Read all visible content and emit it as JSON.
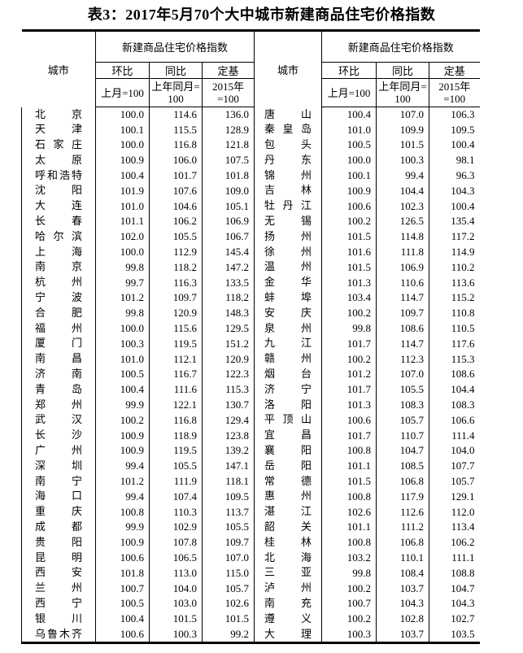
{
  "title": "表3：2017年5月70个大中城市新建商品住宅价格指数",
  "header": {
    "city": "城市",
    "index_group": "新建商品住宅价格指数",
    "mom": "环比",
    "yoy": "同比",
    "fixed_base": "定基",
    "mom_base": "上月=100",
    "yoy_base": "上年同月=\n100",
    "fixed_base_base": "2015年\n=100"
  },
  "table": {
    "columns_per_half": [
      "城市",
      "环比 上月=100",
      "同比 上年同月=100",
      "定基 2015年=100"
    ],
    "rows": [
      [
        "北京",
        "100.0",
        "114.6",
        "136.0",
        "唐山",
        "100.4",
        "107.0",
        "106.3"
      ],
      [
        "天津",
        "100.1",
        "115.5",
        "128.9",
        "秦皇岛",
        "101.0",
        "109.9",
        "109.5"
      ],
      [
        "石家庄",
        "100.0",
        "116.8",
        "121.8",
        "包头",
        "100.5",
        "101.5",
        "100.4"
      ],
      [
        "太原",
        "100.9",
        "106.0",
        "107.5",
        "丹东",
        "100.0",
        "100.3",
        "98.1"
      ],
      [
        "呼和浩特",
        "100.4",
        "101.7",
        "101.8",
        "锦州",
        "100.1",
        "99.4",
        "96.3"
      ],
      [
        "沈阳",
        "101.9",
        "107.6",
        "109.0",
        "吉林",
        "100.9",
        "104.4",
        "104.3"
      ],
      [
        "大连",
        "101.0",
        "104.6",
        "105.1",
        "牡丹江",
        "100.6",
        "102.3",
        "100.4"
      ],
      [
        "长春",
        "101.1",
        "106.2",
        "106.9",
        "无锡",
        "100.2",
        "126.5",
        "135.4"
      ],
      [
        "哈尔滨",
        "102.0",
        "105.5",
        "106.7",
        "扬州",
        "101.5",
        "114.8",
        "117.2"
      ],
      [
        "上海",
        "100.0",
        "112.9",
        "145.4",
        "徐州",
        "101.6",
        "111.8",
        "114.9"
      ],
      [
        "南京",
        "99.8",
        "118.2",
        "147.2",
        "温州",
        "101.5",
        "106.9",
        "110.2"
      ],
      [
        "杭州",
        "99.7",
        "116.3",
        "133.5",
        "金华",
        "101.3",
        "110.6",
        "113.6"
      ],
      [
        "宁波",
        "101.2",
        "109.7",
        "118.2",
        "蚌埠",
        "103.4",
        "114.7",
        "115.2"
      ],
      [
        "合肥",
        "99.8",
        "120.9",
        "148.3",
        "安庆",
        "100.2",
        "109.7",
        "110.8"
      ],
      [
        "福州",
        "100.0",
        "115.6",
        "129.5",
        "泉州",
        "99.8",
        "108.6",
        "110.5"
      ],
      [
        "厦门",
        "100.3",
        "119.5",
        "151.2",
        "九江",
        "101.7",
        "114.7",
        "117.6"
      ],
      [
        "南昌",
        "101.0",
        "112.1",
        "120.9",
        "赣州",
        "100.2",
        "112.3",
        "115.3"
      ],
      [
        "济南",
        "100.5",
        "116.7",
        "122.3",
        "烟台",
        "101.2",
        "107.0",
        "108.6"
      ],
      [
        "青岛",
        "100.4",
        "111.6",
        "115.3",
        "济宁",
        "101.7",
        "105.5",
        "104.4"
      ],
      [
        "郑州",
        "99.9",
        "122.1",
        "130.7",
        "洛阳",
        "101.3",
        "108.3",
        "108.3"
      ],
      [
        "武汉",
        "100.2",
        "116.8",
        "129.4",
        "平顶山",
        "100.6",
        "105.7",
        "106.6"
      ],
      [
        "长沙",
        "100.9",
        "118.9",
        "123.8",
        "宜昌",
        "101.7",
        "110.7",
        "111.4"
      ],
      [
        "广州",
        "100.9",
        "119.5",
        "139.2",
        "襄阳",
        "100.8",
        "104.7",
        "104.0"
      ],
      [
        "深圳",
        "99.4",
        "105.5",
        "147.1",
        "岳阳",
        "101.1",
        "108.5",
        "107.7"
      ],
      [
        "南宁",
        "101.2",
        "111.9",
        "118.1",
        "常德",
        "101.5",
        "106.8",
        "105.7"
      ],
      [
        "海口",
        "99.4",
        "107.4",
        "109.5",
        "惠州",
        "100.8",
        "117.9",
        "129.1"
      ],
      [
        "重庆",
        "100.8",
        "110.3",
        "113.7",
        "湛江",
        "102.6",
        "112.6",
        "112.0"
      ],
      [
        "成都",
        "99.9",
        "102.9",
        "105.5",
        "韶关",
        "101.1",
        "111.2",
        "113.4"
      ],
      [
        "贵阳",
        "100.9",
        "107.8",
        "109.7",
        "桂林",
        "100.8",
        "106.8",
        "106.2"
      ],
      [
        "昆明",
        "100.6",
        "106.5",
        "107.0",
        "北海",
        "103.2",
        "110.1",
        "111.1"
      ],
      [
        "西安",
        "101.8",
        "113.0",
        "115.0",
        "三亚",
        "99.8",
        "108.4",
        "108.8"
      ],
      [
        "兰州",
        "100.7",
        "104.0",
        "105.7",
        "泸州",
        "100.2",
        "103.7",
        "104.7"
      ],
      [
        "西宁",
        "100.5",
        "103.0",
        "102.6",
        "南充",
        "100.7",
        "104.3",
        "104.3"
      ],
      [
        "银川",
        "100.4",
        "101.5",
        "101.5",
        "遵义",
        "100.2",
        "102.8",
        "102.7"
      ],
      [
        "乌鲁木齐",
        "100.6",
        "100.3",
        "99.2",
        "大理",
        "100.3",
        "103.7",
        "103.5"
      ]
    ]
  },
  "colors": {
    "text": "#000000",
    "background": "#ffffff",
    "border": "#000000"
  }
}
